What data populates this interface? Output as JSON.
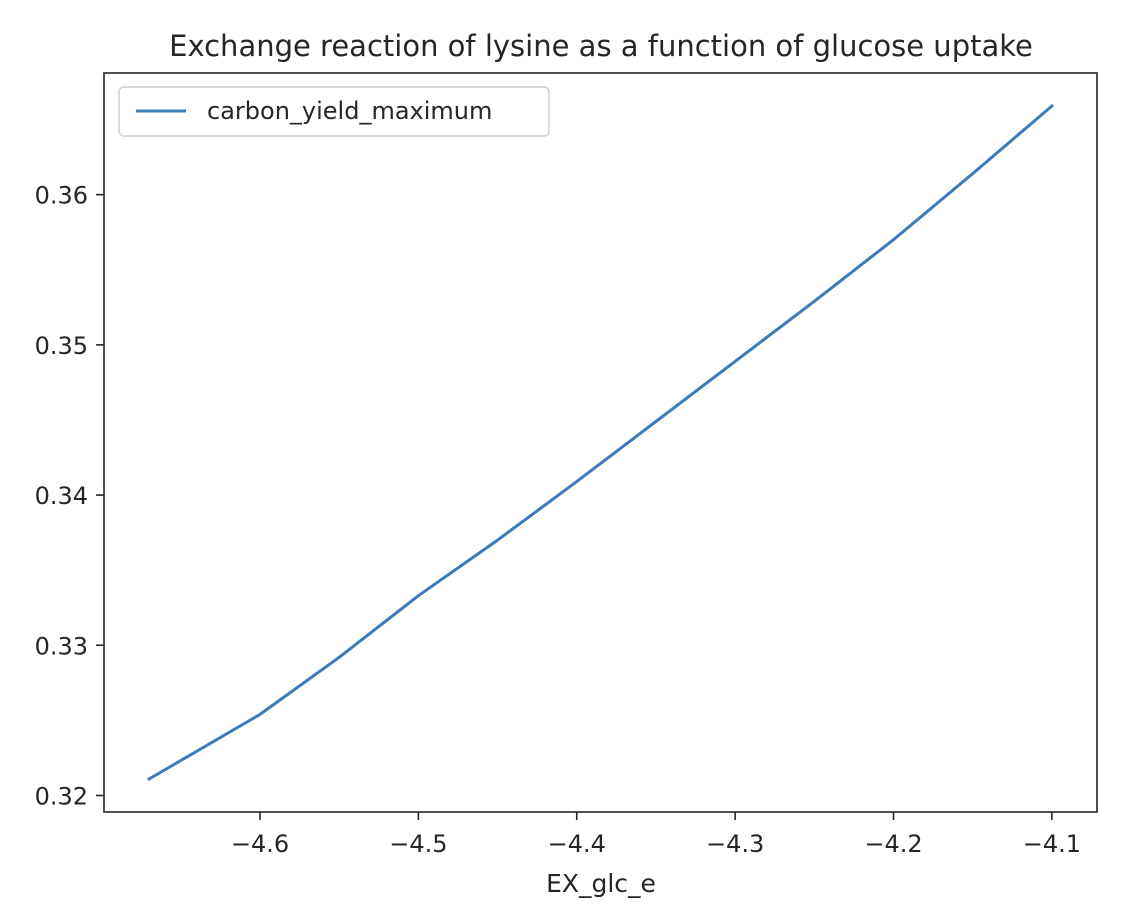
{
  "chart_data": {
    "type": "line",
    "title": "Exchange reaction of lysine as a function of glucose uptake",
    "xlabel": "EX_glc_e",
    "ylabel": "",
    "xlim": [
      -4.6985,
      -4.0715
    ],
    "ylim": [
      0.3189,
      0.3681
    ],
    "xticks": [
      -4.6,
      -4.5,
      -4.4,
      -4.3,
      -4.2,
      -4.1
    ],
    "xtick_labels": [
      "−4.6",
      "−4.5",
      "−4.4",
      "−4.3",
      "−4.2",
      "−4.1"
    ],
    "yticks": [
      0.32,
      0.33,
      0.34,
      0.35,
      0.36
    ],
    "ytick_labels": [
      "0.32",
      "0.33",
      "0.34",
      "0.35",
      "0.36"
    ],
    "grid": false,
    "legend": "top-left",
    "series": [
      {
        "name": "carbon_yield_maximum",
        "color": "#3d7ab8",
        "x": [
          -4.67,
          -4.6,
          -4.55,
          -4.5,
          -4.45,
          -4.4,
          -4.35,
          -4.3,
          -4.25,
          -4.2,
          -4.15,
          -4.1
        ],
        "y": [
          0.3211,
          0.3254,
          0.3292,
          0.3333,
          0.337,
          0.3409,
          0.3449,
          0.3489,
          0.3529,
          0.357,
          0.3614,
          0.3659
        ]
      }
    ]
  }
}
